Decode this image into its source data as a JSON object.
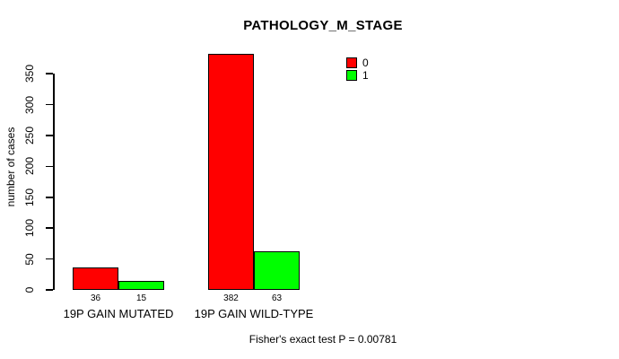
{
  "chart_data": {
    "type": "bar",
    "title": "PATHOLOGY_M_STAGE",
    "ylabel": "number of cases",
    "xlabel": "",
    "categories": [
      "19P GAIN MUTATED",
      "19P GAIN WILD-TYPE"
    ],
    "series": [
      {
        "name": "0",
        "color": "#FF0000",
        "values": [
          36,
          382
        ]
      },
      {
        "name": "1",
        "color": "#00FF00",
        "values": [
          15,
          63
        ]
      }
    ],
    "bar_value_labels": [
      [
        36,
        15
      ],
      [
        382,
        63
      ]
    ],
    "yticks": [
      0,
      50,
      100,
      150,
      200,
      250,
      300,
      350
    ],
    "ylim": [
      0,
      382
    ],
    "grid": false,
    "legend": {
      "position": "top-right",
      "entries": [
        "0",
        "1"
      ]
    },
    "annotation": "Fisher's exact test P = 0.00781"
  }
}
